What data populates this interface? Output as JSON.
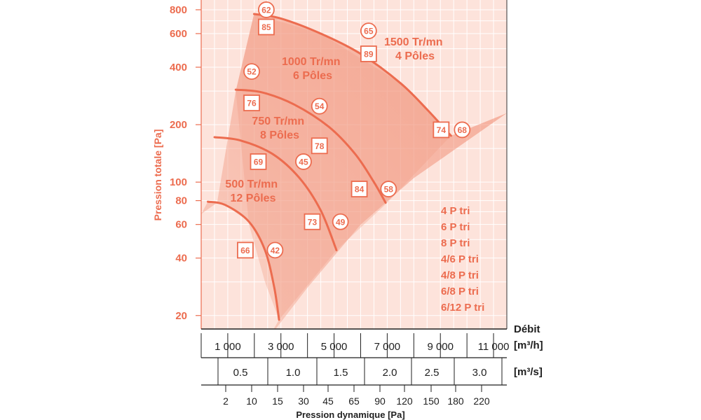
{
  "colors": {
    "accent": "#ec6c4f",
    "panel_bg": "#fde3db",
    "grid": "#ffffff",
    "envelope_light": "#f6b4a1",
    "envelope_dark": "#ee7d62",
    "axis": "#1f1f1f"
  },
  "chart_data": {
    "type": "line",
    "title": "",
    "ylabel": "Pression totale [Pa]",
    "yscale": "log",
    "ylim": [
      17,
      900
    ],
    "y_ticks": [
      {
        "value": 20,
        "label": "20"
      },
      {
        "value": 40,
        "label": "40"
      },
      {
        "value": 60,
        "label": "60"
      },
      {
        "value": 80,
        "label": "80"
      },
      {
        "value": 100,
        "label": "100"
      },
      {
        "value": 200,
        "label": "200"
      },
      {
        "value": 400,
        "label": "400"
      },
      {
        "value": 600,
        "label": "600"
      },
      {
        "value": 800,
        "label": "800"
      }
    ],
    "xlim": [
      0,
      11500
    ],
    "x_axes": {
      "flow_m3h": {
        "label": "Débit",
        "unit": "[m³/h]",
        "ticks": [
          {
            "value": 1000,
            "label": "1 000"
          },
          {
            "value": 3000,
            "label": "3 000"
          },
          {
            "value": 5000,
            "label": "5 000"
          },
          {
            "value": 7000,
            "label": "7 000"
          },
          {
            "value": 9000,
            "label": "9 000"
          },
          {
            "value": 11000,
            "label": "11 000"
          }
        ]
      },
      "flow_m3s": {
        "unit": "[m³/s]",
        "ticks": [
          {
            "value": 0.5,
            "label": "0.5"
          },
          {
            "value": 1.0,
            "label": "1.0"
          },
          {
            "value": 1.5,
            "label": "1.5"
          },
          {
            "value": 2.0,
            "label": "2.0"
          },
          {
            "value": 2.5,
            "label": "2.5"
          },
          {
            "value": 3.0,
            "label": "3.0"
          }
        ]
      },
      "dynamic_pressure": {
        "label": "Pression dynamique [Pa]",
        "ticks": [
          {
            "value": 2,
            "label": "2"
          },
          {
            "value": 10,
            "label": "10"
          },
          {
            "value": 15,
            "label": "15"
          },
          {
            "value": 30,
            "label": "30"
          },
          {
            "value": 45,
            "label": "45"
          },
          {
            "value": 65,
            "label": "65"
          },
          {
            "value": 90,
            "label": "90"
          },
          {
            "value": 120,
            "label": "120"
          },
          {
            "value": 150,
            "label": "150"
          },
          {
            "value": 180,
            "label": "180"
          },
          {
            "value": 220,
            "label": "220"
          }
        ]
      }
    },
    "series": [
      {
        "name": "1500 Tr/mn 4 Pôles",
        "label_lines": [
          "1500 Tr/mn",
          "4 Pôles"
        ],
        "points": [
          [
            1990,
            760
          ],
          [
            3000,
            720
          ],
          [
            4500,
            600
          ],
          [
            6000,
            470
          ],
          [
            7500,
            330
          ],
          [
            8500,
            240
          ],
          [
            9400,
            175
          ]
        ],
        "markers": [
          {
            "kind": "circle",
            "value": "62",
            "x": 2450,
            "y": 800
          },
          {
            "kind": "square",
            "value": "85",
            "x": 2450,
            "y": 650
          },
          {
            "kind": "circle",
            "value": "65",
            "x": 6300,
            "y": 620
          },
          {
            "kind": "square",
            "value": "89",
            "x": 6300,
            "y": 470
          },
          {
            "kind": "square",
            "value": "74",
            "x": 9030,
            "y": 188
          },
          {
            "kind": "circle",
            "value": "68",
            "x": 9820,
            "y": 188
          }
        ]
      },
      {
        "name": "1000 Tr/mn 6 Pôles",
        "label_lines": [
          "1000 Tr/mn",
          "6 Pôles"
        ],
        "points": [
          [
            1300,
            305
          ],
          [
            2300,
            295
          ],
          [
            3500,
            255
          ],
          [
            4800,
            195
          ],
          [
            5800,
            140
          ],
          [
            6500,
            100
          ],
          [
            6940,
            78
          ]
        ],
        "markers": [
          {
            "kind": "circle",
            "value": "52",
            "x": 1900,
            "y": 380
          },
          {
            "kind": "square",
            "value": "76",
            "x": 1900,
            "y": 260
          },
          {
            "kind": "circle",
            "value": "54",
            "x": 4450,
            "y": 250
          },
          {
            "kind": "square",
            "value": "78",
            "x": 4450,
            "y": 155
          },
          {
            "kind": "square",
            "value": "84",
            "x": 5950,
            "y": 92
          },
          {
            "kind": "circle",
            "value": "58",
            "x": 7050,
            "y": 92
          }
        ]
      },
      {
        "name": "750 Tr/mn 8 Pôles",
        "label_lines": [
          "750 Tr/mn",
          "8 Pôles"
        ],
        "points": [
          [
            500,
            172
          ],
          [
            1500,
            165
          ],
          [
            2700,
            140
          ],
          [
            3700,
            105
          ],
          [
            4500,
            71
          ],
          [
            5090,
            44
          ]
        ],
        "markers": [
          {
            "kind": "square",
            "value": "69",
            "x": 2150,
            "y": 128
          },
          {
            "kind": "circle",
            "value": "45",
            "x": 3850,
            "y": 128
          },
          {
            "kind": "square",
            "value": "73",
            "x": 4180,
            "y": 62
          },
          {
            "kind": "circle",
            "value": "49",
            "x": 5240,
            "y": 62
          }
        ]
      },
      {
        "name": "500 Tr/mn 12 Pôles",
        "label_lines": [
          "500 Tr/mn",
          "12 Pôles"
        ],
        "points": [
          [
            250,
            79
          ],
          [
            900,
            76
          ],
          [
            1800,
            62
          ],
          [
            2400,
            44
          ],
          [
            2750,
            28
          ],
          [
            2930,
            19
          ]
        ],
        "markers": [
          {
            "kind": "square",
            "value": "66",
            "x": 1660,
            "y": 44
          },
          {
            "kind": "circle",
            "value": "42",
            "x": 2780,
            "y": 44
          }
        ]
      }
    ],
    "legend": {
      "position": "bottom-right",
      "items": [
        "4 P tri",
        "6 P tri",
        "8 P tri",
        "4/6 P tri",
        "4/8 P tri",
        "6/8 P tri",
        "6/12 P tri"
      ]
    }
  }
}
